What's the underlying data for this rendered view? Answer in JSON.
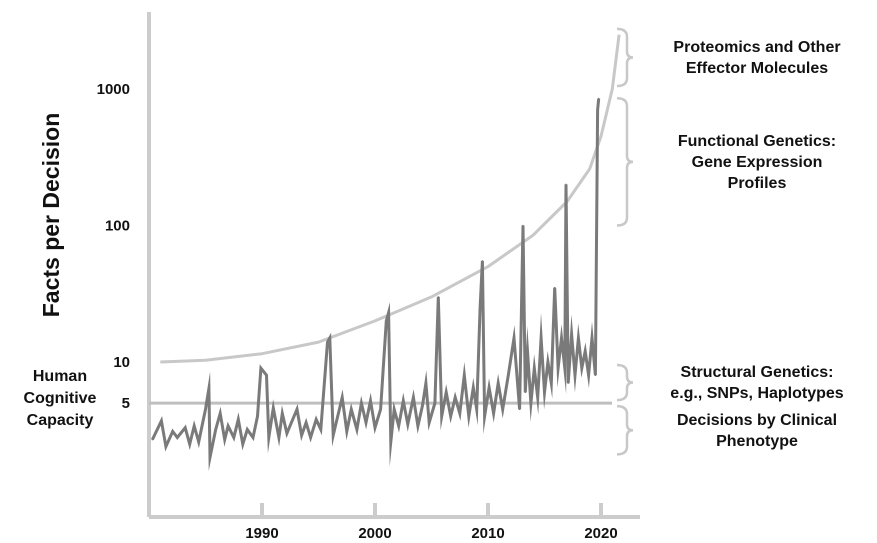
{
  "chart_data": {
    "type": "line",
    "ylabel": "Facts per Decision",
    "xlabel": "",
    "x_ticks": [
      1990,
      2000,
      2010,
      2020
    ],
    "y_ticks": [
      {
        "label": "1000",
        "value": 1000
      },
      {
        "label": "100",
        "value": 100
      },
      {
        "label": "10",
        "value": 10
      },
      {
        "label": "5",
        "value": 5
      }
    ],
    "y_scale": "log",
    "xlim": [
      1980.3,
      2022.6
    ],
    "ylim": [
      2,
      3000
    ],
    "human_capacity": {
      "value": 5,
      "lines": [
        "Human",
        "Cognitive",
        "Capacity"
      ]
    },
    "trend_curve": {
      "x": [
        1981,
        1985,
        1990,
        1995,
        2000,
        2005,
        2010,
        2014,
        2017,
        2019,
        2020,
        2021,
        2021.6
      ],
      "y": [
        10,
        10.3,
        11.5,
        14,
        20,
        30,
        50,
        85,
        150,
        260,
        450,
        1000,
        2500
      ]
    },
    "series": [
      {
        "color": "#7a7a7a",
        "x": [
          1980.3,
          1981.1,
          1981.5,
          1982.1,
          1982.5,
          1983.2,
          1983.6,
          1984.0,
          1984.4,
          1985.0,
          1985.3,
          1985.4,
          1985.9,
          1986.3,
          1986.7,
          1987.0,
          1987.5,
          1987.9,
          1988.3,
          1988.7,
          1989.2,
          1989.6,
          1989.9,
          1990.4,
          1990.6,
          1991.0,
          1991.5,
          1991.8,
          1992.2,
          1992.6,
          1993.1,
          1993.5,
          1993.9,
          1994.3,
          1994.8,
          1995.2,
          1995.8,
          1996.0,
          1996.3,
          1996.7,
          1997.1,
          1997.5,
          1997.9,
          1998.4,
          1998.8,
          1999.2,
          1999.6,
          2000.0,
          2000.5,
          2001.0,
          2001.2,
          2001.4,
          2001.7,
          2002.1,
          2002.5,
          2002.9,
          2003.4,
          2003.8,
          2004.2,
          2004.5,
          2004.8,
          2005.3,
          2005.6,
          2005.9,
          2006.3,
          2006.7,
          2007.1,
          2007.5,
          2007.9,
          2008.3,
          2008.7,
          2009.0,
          2009.3,
          2009.5,
          2009.7,
          2010.1,
          2010.5,
          2010.9,
          2011.3,
          2011.8,
          2012.3,
          2012.8,
          2013.1,
          2013.3,
          2013.5,
          2013.8,
          2014.1,
          2014.4,
          2014.7,
          2015.0,
          2015.3,
          2015.6,
          2015.9,
          2016.2,
          2016.5,
          2016.8,
          2016.9,
          2017.1,
          2017.4,
          2017.7,
          2018.0,
          2018.3,
          2018.6,
          2018.9,
          2019.2,
          2019.5,
          2019.7,
          2019.8
        ],
        "y": [
          2.7,
          3.7,
          2.4,
          3.1,
          2.8,
          3.3,
          2.5,
          3.4,
          2.6,
          4.5,
          6.4,
          2.0,
          3.2,
          4.2,
          2.7,
          3.4,
          2.8,
          3.8,
          2.5,
          3.2,
          2.8,
          4.0,
          9.0,
          8.0,
          2.8,
          4.6,
          2.8,
          4.2,
          3.0,
          3.6,
          4.5,
          2.9,
          3.6,
          2.8,
          3.8,
          3.2,
          14.0,
          15.0,
          2.9,
          4.0,
          5.5,
          3.1,
          4.5,
          3.2,
          5.0,
          3.6,
          5.2,
          3.3,
          4.5,
          20.0,
          23.0,
          2.6,
          4.5,
          3.4,
          5.2,
          3.5,
          5.5,
          3.4,
          4.8,
          7.0,
          3.6,
          5.0,
          30.0,
          4.0,
          6.0,
          4.0,
          5.5,
          4.2,
          8.0,
          4.0,
          6.5,
          4.5,
          25.0,
          55.0,
          4.0,
          6.5,
          4.2,
          7.0,
          4.5,
          8.0,
          15.0,
          4.5,
          100.0,
          6.0,
          12.0,
          5.0,
          9.0,
          5.5,
          15.0,
          6.0,
          10.0,
          7.0,
          35.0,
          9.0,
          15.0,
          9.0,
          200.0,
          7.0,
          16.0,
          8.0,
          15.0,
          9.0,
          12.0,
          8.0,
          15.0,
          8.0,
          700.0,
          850.0
        ]
      }
    ],
    "regions": [
      {
        "lines": [
          "Proteomics and Other",
          "Effector Molecules"
        ],
        "y_range": [
          1000,
          2900
        ]
      },
      {
        "lines": [
          "Functional Genetics:",
          "Gene Expression",
          "Profiles"
        ],
        "y_range": [
          95,
          900
        ]
      },
      {
        "lines": [
          "Structural Genetics:",
          "e.g., SNPs, Haplotypes"
        ],
        "y_range": [
          5,
          10
        ]
      },
      {
        "lines": [
          "Decisions by Clinical",
          "Phenotype"
        ],
        "y_range": [
          2,
          5
        ]
      }
    ]
  }
}
